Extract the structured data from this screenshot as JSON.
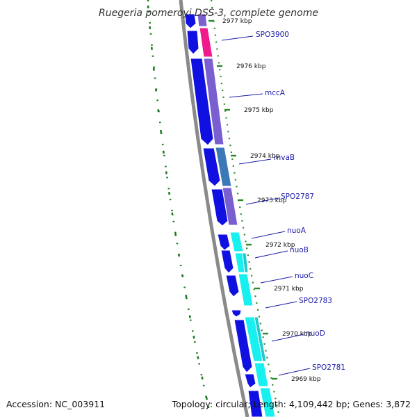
{
  "title": "Ruegeria pomeroyi DSS-3, complete genome",
  "accession_label": "Accession: NC_003911",
  "summary_label": "Topology: circular; Length: 4,109,442 bp; Genes: 3,872",
  "colors": {
    "backbone": "#8a8a8a",
    "gc_dash": "#1e7a1e",
    "tick": "#2a8a2a",
    "forward_cds": "#1010e0",
    "label_line": "#1a1aa8",
    "label_text": "#1a1aa8"
  },
  "kbp_marks": [
    {
      "label": "2977 kbp",
      "kbp": 2977
    },
    {
      "label": "2976 kbp",
      "kbp": 2976
    },
    {
      "label": "2975 kbp",
      "kbp": 2975
    },
    {
      "label": "2974 kbp",
      "kbp": 2974
    },
    {
      "label": "2973 kbp",
      "kbp": 2973
    },
    {
      "label": "2972 kbp",
      "kbp": 2972
    },
    {
      "label": "2971 kbp",
      "kbp": 2971
    },
    {
      "label": "2970 kbp",
      "kbp": 2970
    },
    {
      "label": "2969 kbp",
      "kbp": 2969
    }
  ],
  "gene_labels": [
    {
      "label": "SPO3900"
    },
    {
      "label": "mccA"
    },
    {
      "label": "mvaB"
    },
    {
      "label": "SPO2787"
    },
    {
      "label": "nuoA"
    },
    {
      "label": "nuoB"
    },
    {
      "label": "nuoC"
    },
    {
      "label": "SPO2783"
    },
    {
      "label": "nuoD"
    },
    {
      "label": "SPO2781"
    }
  ]
}
